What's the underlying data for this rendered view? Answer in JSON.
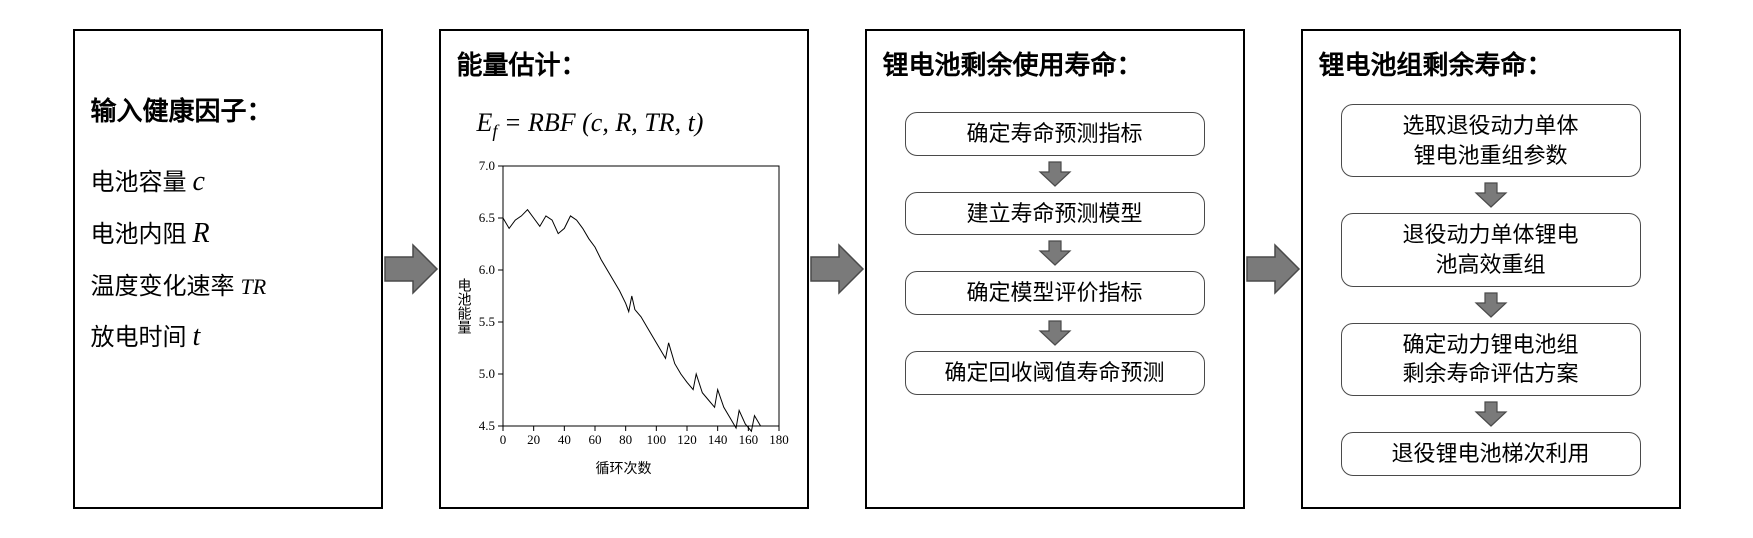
{
  "colors": {
    "panel_border": "#000000",
    "step_border": "#4a4a4a",
    "arrow_fill": "#7a7a7a",
    "arrow_stroke": "#4a4a4a",
    "background": "#ffffff",
    "text": "#000000",
    "chart_line": "#000000",
    "chart_axis": "#000000"
  },
  "panel1": {
    "title": "输入健康因子",
    "factors": [
      {
        "label": "电池容量",
        "var": "c"
      },
      {
        "label": "电池内阻",
        "var": "R"
      },
      {
        "label": "温度变化速率",
        "var": "TR",
        "small": true
      },
      {
        "label": "放电时间",
        "var": "t"
      }
    ]
  },
  "panel2": {
    "title": "能量估计",
    "formula_lhs": "E",
    "formula_sub": "f",
    "formula_rhs": " = RBF (c, R, TR, t)",
    "chart": {
      "type": "line",
      "xlabel": "循环次数",
      "ylabel": "电池能量",
      "xlim": [
        0,
        180
      ],
      "ylim": [
        4.5,
        7.0
      ],
      "xtick_step": 20,
      "ytick_step": 0.5,
      "xticks": [
        0,
        20,
        40,
        60,
        80,
        100,
        120,
        140,
        160,
        180
      ],
      "yticks": [
        4.5,
        5.0,
        5.5,
        6.0,
        6.5,
        7.0
      ],
      "tick_fontsize": 13,
      "label_fontsize": 14,
      "line_color": "#000000",
      "line_width": 1,
      "axis_color": "#000000",
      "background_color": "#ffffff",
      "data": [
        [
          0,
          6.5
        ],
        [
          4,
          6.4
        ],
        [
          8,
          6.48
        ],
        [
          12,
          6.52
        ],
        [
          16,
          6.58
        ],
        [
          20,
          6.5
        ],
        [
          24,
          6.42
        ],
        [
          28,
          6.52
        ],
        [
          32,
          6.48
        ],
        [
          36,
          6.35
        ],
        [
          40,
          6.4
        ],
        [
          44,
          6.52
        ],
        [
          48,
          6.48
        ],
        [
          52,
          6.4
        ],
        [
          56,
          6.3
        ],
        [
          60,
          6.22
        ],
        [
          64,
          6.1
        ],
        [
          68,
          6.0
        ],
        [
          72,
          5.9
        ],
        [
          76,
          5.8
        ],
        [
          80,
          5.68
        ],
        [
          82,
          5.6
        ],
        [
          84,
          5.75
        ],
        [
          86,
          5.62
        ],
        [
          90,
          5.55
        ],
        [
          94,
          5.45
        ],
        [
          98,
          5.35
        ],
        [
          102,
          5.25
        ],
        [
          106,
          5.15
        ],
        [
          108,
          5.3
        ],
        [
          112,
          5.1
        ],
        [
          116,
          5.0
        ],
        [
          120,
          4.92
        ],
        [
          124,
          4.85
        ],
        [
          126,
          5.0
        ],
        [
          130,
          4.82
        ],
        [
          134,
          4.75
        ],
        [
          138,
          4.68
        ],
        [
          140,
          4.85
        ],
        [
          144,
          4.68
        ],
        [
          148,
          4.58
        ],
        [
          152,
          4.48
        ],
        [
          154,
          4.65
        ],
        [
          158,
          4.52
        ],
        [
          162,
          4.45
        ],
        [
          164,
          4.6
        ],
        [
          168,
          4.5
        ]
      ]
    }
  },
  "panel3": {
    "title": "锂电池剩余使用寿命",
    "steps": [
      "确定寿命预测指标",
      "建立寿命预测模型",
      "确定模型评价指标",
      "确定回收阈值寿命预测"
    ]
  },
  "panel4": {
    "title": "锂电池组剩余寿命",
    "steps": [
      "选取退役动力单体\n锂电池重组参数",
      "退役动力单体锂电\n池高效重组",
      "确定动力锂电池组\n剩余寿命评估方案",
      "退役锂电池梯次利用"
    ]
  },
  "arrows": {
    "large_fill": "#7a7a7a",
    "large_stroke": "#4a4a4a",
    "small_fill": "#7a7a7a",
    "small_stroke": "#4a4a4a"
  }
}
